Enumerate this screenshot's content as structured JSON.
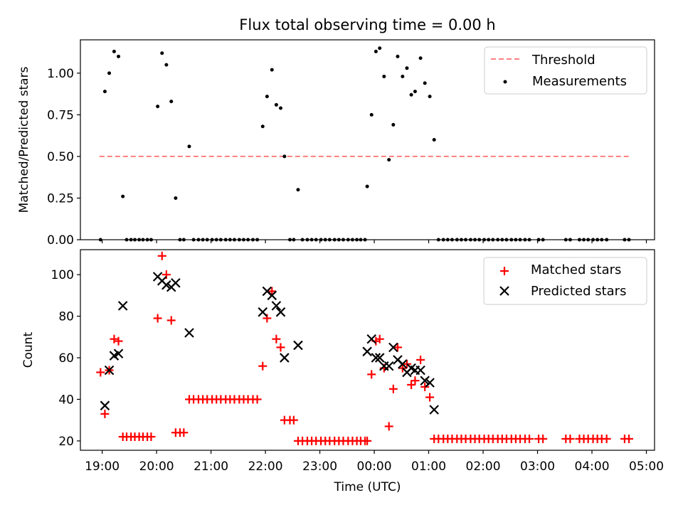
{
  "title": "Flux total observing time = 0.00 h",
  "chart_data": [
    {
      "type": "scatter",
      "ylabel": "Matched/Predicted stars",
      "ylim": [
        0,
        1.2
      ],
      "yticks": [
        0,
        0.25,
        0.5,
        0.75,
        1.0
      ],
      "ytick_labels": [
        "0.00",
        "0.25",
        "0.50",
        "0.75",
        "1.00"
      ],
      "xlim": [
        18.6,
        29.15
      ],
      "xticks": [
        19,
        20,
        21,
        22,
        23,
        24,
        25,
        26,
        27,
        28,
        29
      ],
      "threshold": {
        "name": "Threshold",
        "value": 0.5,
        "x_range": [
          18.95,
          28.7
        ],
        "color": "#ff7f7f"
      },
      "legend": {
        "position": "top-right",
        "entries": [
          "Threshold",
          "Measurements"
        ]
      },
      "series": [
        {
          "name": "Measurements",
          "color": "#000000",
          "points": [
            [
              18.97,
              0.0
            ],
            [
              19.05,
              0.89
            ],
            [
              19.13,
              1.0
            ],
            [
              19.22,
              1.13
            ],
            [
              19.3,
              1.1
            ],
            [
              19.38,
              0.26
            ],
            [
              19.45,
              0.0
            ],
            [
              19.53,
              0.0
            ],
            [
              19.6,
              0.0
            ],
            [
              19.68,
              0.0
            ],
            [
              19.75,
              0.0
            ],
            [
              19.83,
              0.0
            ],
            [
              19.9,
              0.0
            ],
            [
              20.02,
              0.8
            ],
            [
              20.1,
              1.12
            ],
            [
              20.18,
              1.05
            ],
            [
              20.27,
              0.83
            ],
            [
              20.35,
              0.25
            ],
            [
              20.43,
              0.0
            ],
            [
              20.5,
              0.0
            ],
            [
              20.6,
              0.56
            ],
            [
              20.68,
              0.0
            ],
            [
              20.77,
              0.0
            ],
            [
              20.85,
              0.0
            ],
            [
              20.93,
              0.0
            ],
            [
              21.02,
              0.0
            ],
            [
              21.1,
              0.0
            ],
            [
              21.18,
              0.0
            ],
            [
              21.27,
              0.0
            ],
            [
              21.35,
              0.0
            ],
            [
              21.43,
              0.0
            ],
            [
              21.52,
              0.0
            ],
            [
              21.6,
              0.0
            ],
            [
              21.68,
              0.0
            ],
            [
              21.77,
              0.0
            ],
            [
              21.85,
              0.0
            ],
            [
              21.95,
              0.68
            ],
            [
              22.03,
              0.86
            ],
            [
              22.12,
              1.02
            ],
            [
              22.2,
              0.81
            ],
            [
              22.28,
              0.79
            ],
            [
              22.35,
              0.5
            ],
            [
              22.45,
              0.0
            ],
            [
              22.52,
              0.0
            ],
            [
              22.6,
              0.3
            ],
            [
              22.68,
              0.0
            ],
            [
              22.77,
              0.0
            ],
            [
              22.85,
              0.0
            ],
            [
              22.93,
              0.0
            ],
            [
              23.02,
              0.0
            ],
            [
              23.1,
              0.0
            ],
            [
              23.18,
              0.0
            ],
            [
              23.27,
              0.0
            ],
            [
              23.35,
              0.0
            ],
            [
              23.43,
              0.0
            ],
            [
              23.52,
              0.0
            ],
            [
              23.6,
              0.0
            ],
            [
              23.68,
              0.0
            ],
            [
              23.75,
              0.0
            ],
            [
              23.83,
              0.0
            ],
            [
              23.87,
              0.32
            ],
            [
              23.95,
              0.75
            ],
            [
              24.03,
              1.13
            ],
            [
              24.1,
              1.15
            ],
            [
              24.18,
              0.98
            ],
            [
              24.27,
              0.48
            ],
            [
              24.35,
              0.69
            ],
            [
              24.43,
              1.1
            ],
            [
              24.52,
              0.98
            ],
            [
              24.6,
              1.03
            ],
            [
              24.68,
              0.87
            ],
            [
              24.75,
              0.89
            ],
            [
              24.85,
              1.09
            ],
            [
              24.93,
              0.94
            ],
            [
              25.02,
              0.86
            ],
            [
              25.1,
              0.6
            ],
            [
              25.18,
              0.0
            ],
            [
              25.27,
              0.0
            ],
            [
              25.35,
              0.0
            ],
            [
              25.43,
              0.0
            ],
            [
              25.52,
              0.0
            ],
            [
              25.6,
              0.0
            ],
            [
              25.68,
              0.0
            ],
            [
              25.77,
              0.0
            ],
            [
              25.85,
              0.0
            ],
            [
              25.93,
              0.0
            ],
            [
              26.02,
              0.0
            ],
            [
              26.1,
              0.0
            ],
            [
              26.18,
              0.0
            ],
            [
              26.27,
              0.0
            ],
            [
              26.35,
              0.0
            ],
            [
              26.43,
              0.0
            ],
            [
              26.52,
              0.0
            ],
            [
              26.6,
              0.0
            ],
            [
              26.68,
              0.0
            ],
            [
              26.77,
              0.0
            ],
            [
              26.85,
              0.0
            ],
            [
              27.02,
              0.0
            ],
            [
              27.1,
              0.0
            ],
            [
              27.52,
              0.0
            ],
            [
              27.6,
              0.0
            ],
            [
              27.77,
              0.0
            ],
            [
              27.85,
              0.0
            ],
            [
              27.93,
              0.0
            ],
            [
              28.02,
              0.0
            ],
            [
              28.1,
              0.0
            ],
            [
              28.18,
              0.0
            ],
            [
              28.27,
              0.0
            ],
            [
              28.6,
              0.0
            ],
            [
              28.68,
              0.0
            ]
          ]
        }
      ]
    },
    {
      "type": "scatter",
      "ylabel": "Count",
      "xlabel": "Time (UTC)",
      "ylim": [
        15.5,
        112
      ],
      "yticks": [
        20,
        40,
        60,
        80,
        100
      ],
      "ytick_labels": [
        "20",
        "40",
        "60",
        "80",
        "100"
      ],
      "xlim": [
        18.6,
        29.15
      ],
      "xticks": [
        19,
        20,
        21,
        22,
        23,
        24,
        25,
        26,
        27,
        28,
        29
      ],
      "xtick_labels": [
        "19:00",
        "20:00",
        "21:00",
        "22:00",
        "23:00",
        "00:00",
        "01:00",
        "02:00",
        "03:00",
        "04:00",
        "05:00"
      ],
      "legend": {
        "position": "top-right",
        "entries": [
          "Matched stars",
          "Predicted stars"
        ]
      },
      "series": [
        {
          "name": "Matched stars",
          "color": "#ff0000",
          "marker": "+",
          "points": [
            [
              18.97,
              53
            ],
            [
              19.05,
              33
            ],
            [
              19.13,
              54
            ],
            [
              19.22,
              69
            ],
            [
              19.3,
              68
            ],
            [
              19.38,
              22
            ],
            [
              19.45,
              22
            ],
            [
              19.53,
              22
            ],
            [
              19.6,
              22
            ],
            [
              19.68,
              22
            ],
            [
              19.75,
              22
            ],
            [
              19.83,
              22
            ],
            [
              19.9,
              22
            ],
            [
              20.02,
              79
            ],
            [
              20.1,
              109
            ],
            [
              20.18,
              100
            ],
            [
              20.27,
              78
            ],
            [
              20.35,
              24
            ],
            [
              20.43,
              24
            ],
            [
              20.5,
              24
            ],
            [
              20.6,
              40
            ],
            [
              20.68,
              40
            ],
            [
              20.77,
              40
            ],
            [
              20.85,
              40
            ],
            [
              20.93,
              40
            ],
            [
              21.02,
              40
            ],
            [
              21.1,
              40
            ],
            [
              21.18,
              40
            ],
            [
              21.27,
              40
            ],
            [
              21.35,
              40
            ],
            [
              21.43,
              40
            ],
            [
              21.52,
              40
            ],
            [
              21.6,
              40
            ],
            [
              21.68,
              40
            ],
            [
              21.77,
              40
            ],
            [
              21.85,
              40
            ],
            [
              21.95,
              56
            ],
            [
              22.03,
              79
            ],
            [
              22.12,
              92
            ],
            [
              22.2,
              69
            ],
            [
              22.28,
              65
            ],
            [
              22.35,
              30
            ],
            [
              22.45,
              30
            ],
            [
              22.52,
              30
            ],
            [
              22.6,
              20
            ],
            [
              22.68,
              20
            ],
            [
              22.77,
              20
            ],
            [
              22.85,
              20
            ],
            [
              22.93,
              20
            ],
            [
              23.02,
              20
            ],
            [
              23.1,
              20
            ],
            [
              23.18,
              20
            ],
            [
              23.27,
              20
            ],
            [
              23.35,
              20
            ],
            [
              23.43,
              20
            ],
            [
              23.52,
              20
            ],
            [
              23.6,
              20
            ],
            [
              23.68,
              20
            ],
            [
              23.75,
              20
            ],
            [
              23.83,
              20
            ],
            [
              23.87,
              20
            ],
            [
              23.95,
              52
            ],
            [
              24.03,
              68
            ],
            [
              24.1,
              69
            ],
            [
              24.18,
              55
            ],
            [
              24.27,
              27
            ],
            [
              24.35,
              45
            ],
            [
              24.43,
              65
            ],
            [
              24.52,
              55
            ],
            [
              24.6,
              57
            ],
            [
              24.68,
              47
            ],
            [
              24.75,
              49
            ],
            [
              24.85,
              59
            ],
            [
              24.93,
              46
            ],
            [
              25.02,
              41
            ],
            [
              25.1,
              21
            ],
            [
              25.18,
              21
            ],
            [
              25.27,
              21
            ],
            [
              25.35,
              21
            ],
            [
              25.43,
              21
            ],
            [
              25.52,
              21
            ],
            [
              25.6,
              21
            ],
            [
              25.68,
              21
            ],
            [
              25.77,
              21
            ],
            [
              25.85,
              21
            ],
            [
              25.93,
              21
            ],
            [
              26.02,
              21
            ],
            [
              26.1,
              21
            ],
            [
              26.18,
              21
            ],
            [
              26.27,
              21
            ],
            [
              26.35,
              21
            ],
            [
              26.43,
              21
            ],
            [
              26.52,
              21
            ],
            [
              26.6,
              21
            ],
            [
              26.68,
              21
            ],
            [
              26.77,
              21
            ],
            [
              26.85,
              21
            ],
            [
              27.02,
              21
            ],
            [
              27.1,
              21
            ],
            [
              27.52,
              21
            ],
            [
              27.6,
              21
            ],
            [
              27.77,
              21
            ],
            [
              27.85,
              21
            ],
            [
              27.93,
              21
            ],
            [
              28.02,
              21
            ],
            [
              28.1,
              21
            ],
            [
              28.18,
              21
            ],
            [
              28.27,
              21
            ],
            [
              28.6,
              21
            ],
            [
              28.68,
              21
            ]
          ]
        },
        {
          "name": "Predicted stars",
          "color": "#000000",
          "marker": "x",
          "points": [
            [
              19.05,
              37
            ],
            [
              19.13,
              54
            ],
            [
              19.22,
              61
            ],
            [
              19.3,
              62
            ],
            [
              19.38,
              85
            ],
            [
              20.02,
              99
            ],
            [
              20.1,
              97
            ],
            [
              20.18,
              95
            ],
            [
              20.27,
              94
            ],
            [
              20.35,
              96
            ],
            [
              20.6,
              72
            ],
            [
              21.95,
              82
            ],
            [
              22.03,
              92
            ],
            [
              22.12,
              90
            ],
            [
              22.2,
              85
            ],
            [
              22.28,
              82
            ],
            [
              22.35,
              60
            ],
            [
              22.6,
              66
            ],
            [
              23.87,
              63
            ],
            [
              23.95,
              69
            ],
            [
              24.03,
              60
            ],
            [
              24.1,
              60
            ],
            [
              24.18,
              56
            ],
            [
              24.27,
              56
            ],
            [
              24.35,
              65
            ],
            [
              24.43,
              59
            ],
            [
              24.52,
              57
            ],
            [
              24.6,
              53
            ],
            [
              24.68,
              55
            ],
            [
              24.75,
              54
            ],
            [
              24.85,
              54
            ],
            [
              24.93,
              49
            ],
            [
              25.02,
              48
            ],
            [
              25.1,
              35
            ]
          ]
        }
      ]
    }
  ]
}
